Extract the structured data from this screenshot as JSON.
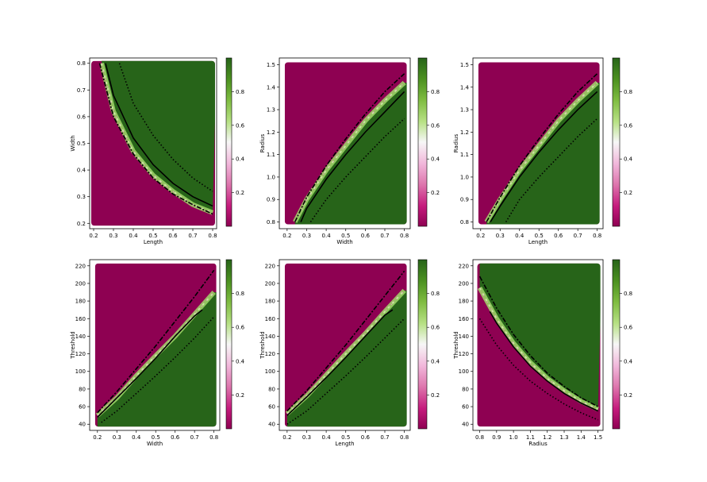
{
  "colors": {
    "low": "#8e0152",
    "mid_low": "#e9a3c9",
    "mid": "#f7f7f7",
    "mid_high": "#a1d76a",
    "high": "#276419"
  },
  "colorbar_ticks": [
    "0.2",
    "0.4",
    "0.6",
    "0.8"
  ],
  "chart_data": [
    {
      "type": "heatmap",
      "xlabel": "Length",
      "ylabel": "Width",
      "xlim": [
        0.18,
        0.82
      ],
      "ylim": [
        0.18,
        0.82
      ],
      "xticks": [
        "0.2",
        "0.3",
        "0.4",
        "0.5",
        "0.6",
        "0.7",
        "0.8"
      ],
      "yticks": [
        "0.2",
        "0.3",
        "0.4",
        "0.5",
        "0.6",
        "0.7",
        "0.8"
      ],
      "grid_x": [
        0.2,
        0.8
      ],
      "grid_y": [
        0.2,
        0.8
      ],
      "boundary": "inverse",
      "boundary_points": [
        [
          0.24,
          0.8
        ],
        [
          0.3,
          0.62
        ],
        [
          0.4,
          0.47
        ],
        [
          0.5,
          0.38
        ],
        [
          0.6,
          0.32
        ],
        [
          0.7,
          0.27
        ],
        [
          0.8,
          0.24
        ]
      ],
      "lines": [
        {
          "style": "dashdot",
          "points": [
            [
              0.23,
              0.8
            ],
            [
              0.3,
              0.6
            ],
            [
              0.4,
              0.46
            ],
            [
              0.5,
              0.37
            ],
            [
              0.6,
              0.31
            ],
            [
              0.7,
              0.27
            ],
            [
              0.8,
              0.235
            ]
          ]
        },
        {
          "style": "solid",
          "points": [
            [
              0.26,
              0.8
            ],
            [
              0.3,
              0.68
            ],
            [
              0.4,
              0.52
            ],
            [
              0.5,
              0.42
            ],
            [
              0.6,
              0.35
            ],
            [
              0.7,
              0.3
            ],
            [
              0.8,
              0.265
            ]
          ]
        },
        {
          "style": "dotted",
          "points": [
            [
              0.33,
              0.8
            ],
            [
              0.4,
              0.65
            ],
            [
              0.5,
              0.53
            ],
            [
              0.6,
              0.44
            ],
            [
              0.7,
              0.37
            ],
            [
              0.8,
              0.32
            ]
          ]
        }
      ]
    },
    {
      "type": "heatmap",
      "xlabel": "Width",
      "ylabel": "Radius",
      "xlim": [
        0.16,
        0.83
      ],
      "ylim": [
        0.77,
        1.53
      ],
      "xticks": [
        "0.2",
        "0.3",
        "0.4",
        "0.5",
        "0.6",
        "0.7",
        "0.8"
      ],
      "yticks": [
        "0.8",
        "0.9",
        "1.0",
        "1.1",
        "1.2",
        "1.3",
        "1.4",
        "1.5"
      ],
      "grid_x": [
        0.2,
        0.8
      ],
      "grid_y": [
        0.8,
        1.5
      ],
      "boundary": "linear-up",
      "boundary_points": [
        [
          0.24,
          0.8
        ],
        [
          0.3,
          0.9
        ],
        [
          0.4,
          1.03
        ],
        [
          0.5,
          1.14
        ],
        [
          0.6,
          1.25
        ],
        [
          0.7,
          1.34
        ],
        [
          0.8,
          1.42
        ]
      ],
      "lines": [
        {
          "style": "dashdot",
          "points": [
            [
              0.24,
              0.8
            ],
            [
              0.3,
              0.91
            ],
            [
              0.4,
              1.05
            ],
            [
              0.5,
              1.17
            ],
            [
              0.6,
              1.28
            ],
            [
              0.7,
              1.38
            ],
            [
              0.8,
              1.46
            ]
          ]
        },
        {
          "style": "solid",
          "points": [
            [
              0.27,
              0.8
            ],
            [
              0.3,
              0.86
            ],
            [
              0.4,
              0.99
            ],
            [
              0.5,
              1.1
            ],
            [
              0.6,
              1.2
            ],
            [
              0.7,
              1.29
            ],
            [
              0.8,
              1.38
            ]
          ]
        },
        {
          "style": "dotted",
          "points": [
            [
              0.32,
              0.8
            ],
            [
              0.4,
              0.9
            ],
            [
              0.5,
              1.0
            ],
            [
              0.6,
              1.09
            ],
            [
              0.7,
              1.18
            ],
            [
              0.8,
              1.26
            ]
          ]
        }
      ]
    },
    {
      "type": "heatmap",
      "xlabel": "Length",
      "ylabel": "Radius",
      "xlim": [
        0.16,
        0.83
      ],
      "ylim": [
        0.77,
        1.53
      ],
      "xticks": [
        "0.2",
        "0.3",
        "0.4",
        "0.5",
        "0.6",
        "0.7",
        "0.8"
      ],
      "yticks": [
        "0.8",
        "0.9",
        "1.0",
        "1.1",
        "1.2",
        "1.3",
        "1.4",
        "1.5"
      ],
      "grid_x": [
        0.2,
        0.8
      ],
      "grid_y": [
        0.8,
        1.5
      ],
      "boundary": "linear-up",
      "boundary_points": [
        [
          0.23,
          0.8
        ],
        [
          0.3,
          0.9
        ],
        [
          0.4,
          1.03
        ],
        [
          0.5,
          1.14
        ],
        [
          0.6,
          1.25
        ],
        [
          0.7,
          1.34
        ],
        [
          0.8,
          1.42
        ]
      ],
      "lines": [
        {
          "style": "dashdot",
          "points": [
            [
              0.23,
              0.8
            ],
            [
              0.3,
              0.91
            ],
            [
              0.4,
              1.05
            ],
            [
              0.5,
              1.17
            ],
            [
              0.6,
              1.28
            ],
            [
              0.7,
              1.38
            ],
            [
              0.8,
              1.46
            ]
          ]
        },
        {
          "style": "solid",
          "points": [
            [
              0.25,
              0.8
            ],
            [
              0.3,
              0.87
            ],
            [
              0.4,
              1.0
            ],
            [
              0.5,
              1.11
            ],
            [
              0.6,
              1.21
            ],
            [
              0.7,
              1.3
            ],
            [
              0.8,
              1.38
            ]
          ]
        },
        {
          "style": "dotted",
          "points": [
            [
              0.33,
              0.8
            ],
            [
              0.4,
              0.9
            ],
            [
              0.5,
              1.0
            ],
            [
              0.6,
              1.09
            ],
            [
              0.7,
              1.18
            ],
            [
              0.8,
              1.26
            ]
          ]
        }
      ]
    },
    {
      "type": "heatmap",
      "xlabel": "Width",
      "ylabel": "Threshold",
      "xlim": [
        0.16,
        0.83
      ],
      "ylim": [
        33,
        227
      ],
      "xticks": [
        "0.2",
        "0.3",
        "0.4",
        "0.5",
        "0.6",
        "0.7",
        "0.8"
      ],
      "yticks": [
        "40",
        "60",
        "80",
        "100",
        "120",
        "140",
        "160",
        "180",
        "200",
        "220"
      ],
      "grid_x": [
        0.2,
        0.8
      ],
      "grid_y": [
        40,
        220
      ],
      "boundary": "linear-up",
      "boundary_points": [
        [
          0.2,
          50
        ],
        [
          0.3,
          70
        ],
        [
          0.4,
          95
        ],
        [
          0.5,
          118
        ],
        [
          0.6,
          140
        ],
        [
          0.7,
          165
        ],
        [
          0.8,
          190
        ]
      ],
      "lines": [
        {
          "style": "dashdot",
          "points": [
            [
              0.2,
              53
            ],
            [
              0.3,
              77
            ],
            [
              0.4,
              103
            ],
            [
              0.5,
              129
            ],
            [
              0.6,
              157
            ],
            [
              0.7,
              185
            ],
            [
              0.8,
              215
            ]
          ]
        },
        {
          "style": "solid",
          "points": [
            [
              0.2,
              48
            ],
            [
              0.3,
              70
            ],
            [
              0.4,
              92
            ],
            [
              0.5,
              115
            ],
            [
              0.6,
              140
            ],
            [
              0.7,
              163
            ],
            [
              0.74,
              170
            ]
          ]
        },
        {
          "style": "dotted",
          "points": [
            [
              0.22,
              42
            ],
            [
              0.3,
              55
            ],
            [
              0.4,
              75
            ],
            [
              0.5,
              95
            ],
            [
              0.6,
              116
            ],
            [
              0.7,
              138
            ],
            [
              0.8,
              162
            ]
          ]
        }
      ]
    },
    {
      "type": "heatmap",
      "xlabel": "Length",
      "ylabel": "Threshold",
      "xlim": [
        0.16,
        0.83
      ],
      "ylim": [
        33,
        227
      ],
      "xticks": [
        "0.2",
        "0.3",
        "0.4",
        "0.5",
        "0.6",
        "0.7",
        "0.8"
      ],
      "yticks": [
        "40",
        "60",
        "80",
        "100",
        "120",
        "140",
        "160",
        "180",
        "200",
        "220"
      ],
      "grid_x": [
        0.2,
        0.8
      ],
      "grid_y": [
        40,
        220
      ],
      "boundary": "linear-up",
      "boundary_points": [
        [
          0.2,
          52
        ],
        [
          0.3,
          72
        ],
        [
          0.4,
          96
        ],
        [
          0.5,
          120
        ],
        [
          0.6,
          143
        ],
        [
          0.7,
          168
        ],
        [
          0.8,
          192
        ]
      ],
      "lines": [
        {
          "style": "dashdot",
          "points": [
            [
              0.2,
              55
            ],
            [
              0.3,
              78
            ],
            [
              0.4,
              104
            ],
            [
              0.5,
              130
            ],
            [
              0.6,
              158
            ],
            [
              0.7,
              186
            ],
            [
              0.8,
              214
            ]
          ]
        },
        {
          "style": "solid",
          "points": [
            [
              0.2,
              50
            ],
            [
              0.3,
              71
            ],
            [
              0.4,
              93
            ],
            [
              0.5,
              116
            ],
            [
              0.6,
              140
            ],
            [
              0.7,
              164
            ],
            [
              0.74,
              170
            ]
          ]
        },
        {
          "style": "dotted",
          "points": [
            [
              0.2,
              40
            ],
            [
              0.3,
              55
            ],
            [
              0.4,
              75
            ],
            [
              0.5,
              95
            ],
            [
              0.6,
              116
            ],
            [
              0.7,
              138
            ],
            [
              0.8,
              160
            ]
          ]
        }
      ]
    },
    {
      "type": "heatmap",
      "xlabel": "Radius",
      "ylabel": "Threshold",
      "xlim": [
        0.76,
        1.53
      ],
      "ylim": [
        33,
        227
      ],
      "xticks": [
        "0.8",
        "0.9",
        "1.0",
        "1.1",
        "1.2",
        "1.3",
        "1.4",
        "1.5"
      ],
      "yticks": [
        "40",
        "60",
        "80",
        "100",
        "120",
        "140",
        "160",
        "180",
        "200",
        "220"
      ],
      "grid_x": [
        0.8,
        1.5
      ],
      "grid_y": [
        40,
        220
      ],
      "boundary": "inverse",
      "boundary_points": [
        [
          0.8,
          195
        ],
        [
          0.9,
          160
        ],
        [
          1.0,
          132
        ],
        [
          1.1,
          110
        ],
        [
          1.2,
          92
        ],
        [
          1.3,
          78
        ],
        [
          1.4,
          66
        ],
        [
          1.5,
          57
        ]
      ],
      "lines": [
        {
          "style": "dashdot",
          "points": [
            [
              0.8,
              208
            ],
            [
              0.9,
              172
            ],
            [
              1.0,
              142
            ],
            [
              1.1,
              118
            ],
            [
              1.2,
              98
            ],
            [
              1.3,
              83
            ],
            [
              1.4,
              70
            ],
            [
              1.5,
              60
            ]
          ]
        },
        {
          "style": "solid",
          "points": [
            [
              0.86,
              168
            ],
            [
              0.9,
              155
            ],
            [
              1.0,
              128
            ],
            [
              1.1,
              106
            ],
            [
              1.2,
              89
            ],
            [
              1.3,
              75
            ],
            [
              1.4,
              64
            ],
            [
              1.5,
              55
            ]
          ]
        },
        {
          "style": "dotted",
          "points": [
            [
              0.8,
              160
            ],
            [
              0.9,
              130
            ],
            [
              1.0,
              107
            ],
            [
              1.1,
              89
            ],
            [
              1.2,
              75
            ],
            [
              1.3,
              63
            ],
            [
              1.4,
              53
            ],
            [
              1.5,
              45
            ]
          ]
        }
      ]
    }
  ]
}
